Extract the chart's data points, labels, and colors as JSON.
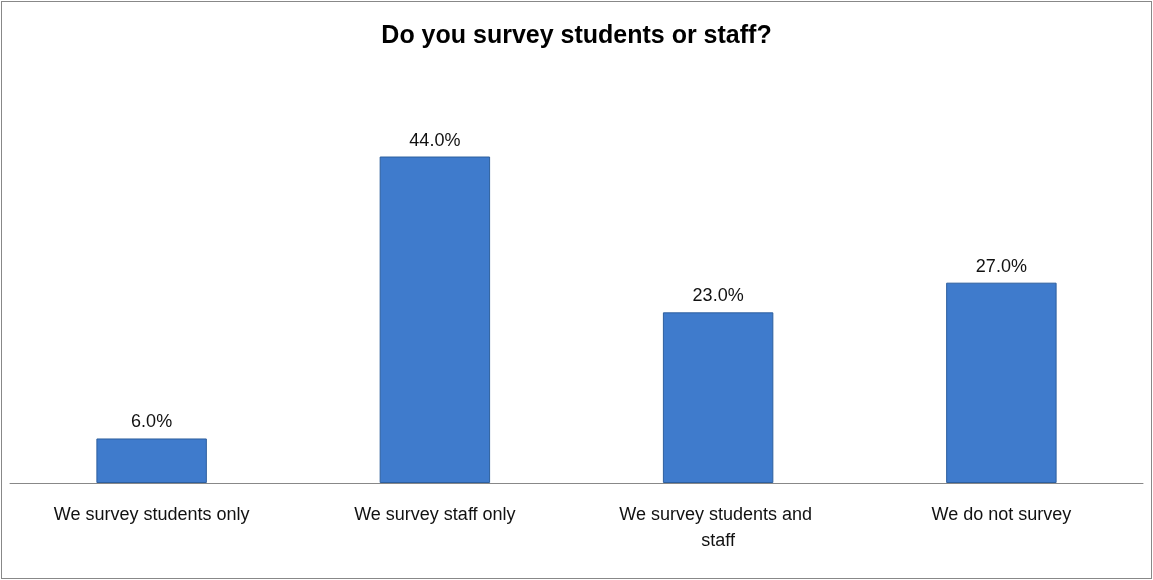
{
  "chart_data": {
    "type": "bar",
    "title": "Do you survey students or staff?",
    "categories": [
      "We survey students only",
      "We survey staff only",
      "We survey students and staff",
      "We do not survey"
    ],
    "values": [
      6.0,
      44.0,
      23.0,
      27.0
    ],
    "color": "#3f7bcc",
    "value_labels": [
      "6.0%",
      "44.0%",
      "23.0%",
      "27.0%"
    ]
  }
}
